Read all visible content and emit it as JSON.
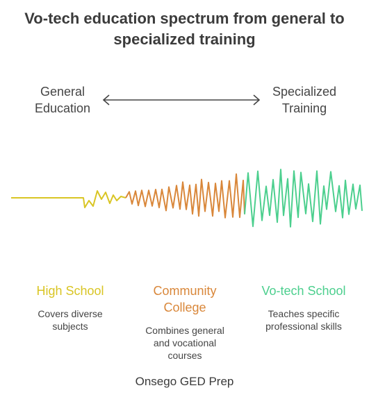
{
  "title": "Vo-tech education spectrum from general to specialized training",
  "endpoints": {
    "left": [
      "General",
      "Education"
    ],
    "right": [
      "Specialized",
      "Training"
    ]
  },
  "stages": [
    {
      "title": "High School",
      "desc": "Covers diverse subjects",
      "color": "#d9c524"
    },
    {
      "title": "Community College",
      "desc": "Combines general and vocational courses",
      "color": "#d9873a"
    },
    {
      "title": "Vo-tech School",
      "desc": "Teaches specific professional skills",
      "color": "#4ccf8e"
    }
  ],
  "footer": "Onsego GED Prep"
}
